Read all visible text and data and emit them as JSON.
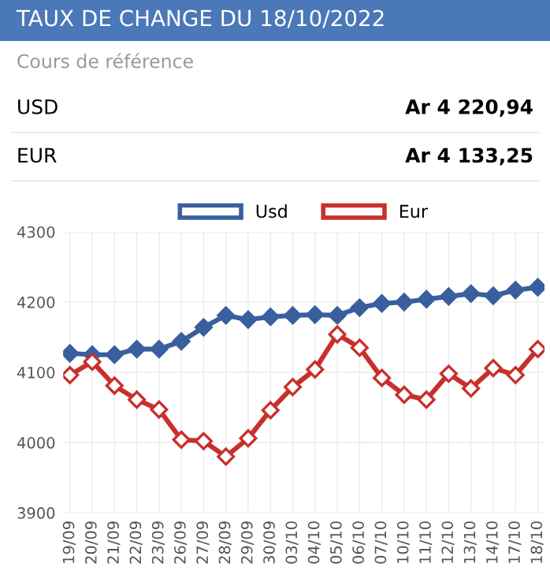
{
  "chart_data": {
    "type": "line",
    "title": "TAUX DE CHANGE DU 18/10/2022",
    "annotations": [
      "Cours de référence",
      "USD",
      "Ar 4 220,94",
      "EUR",
      "Ar 4 133,25"
    ],
    "categories": [
      "19/09",
      "20/09",
      "21/09",
      "22/09",
      "23/09",
      "26/09",
      "27/09",
      "28/09",
      "29/09",
      "30/09",
      "03/10",
      "04/10",
      "05/10",
      "06/10",
      "07/10",
      "10/10",
      "11/10",
      "12/10",
      "13/10",
      "14/10",
      "17/10",
      "18/10"
    ],
    "series": [
      {
        "name": "Usd",
        "color": "#3a5f9e",
        "values": [
          4127,
          4125,
          4125,
          4133,
          4133,
          4144,
          4164,
          4181,
          4175,
          4179,
          4181,
          4182,
          4181,
          4192,
          4198,
          4200,
          4204,
          4208,
          4212,
          4209,
          4217,
          4221
        ]
      },
      {
        "name": "Eur",
        "color": "#c8302c",
        "values": [
          4096,
          4115,
          4081,
          4061,
          4047,
          4004,
          4002,
          3980,
          4006,
          4046,
          4079,
          4104,
          4154,
          4135,
          4092,
          4068,
          4061,
          4098,
          4077,
          4106,
          4096,
          4133
        ]
      }
    ],
    "ylim": [
      3900,
      4300
    ],
    "yticks": [
      3900,
      4000,
      4100,
      4200,
      4300
    ],
    "grid": true,
    "legend": "top",
    "marker": "diamond",
    "line_style": "solid"
  }
}
